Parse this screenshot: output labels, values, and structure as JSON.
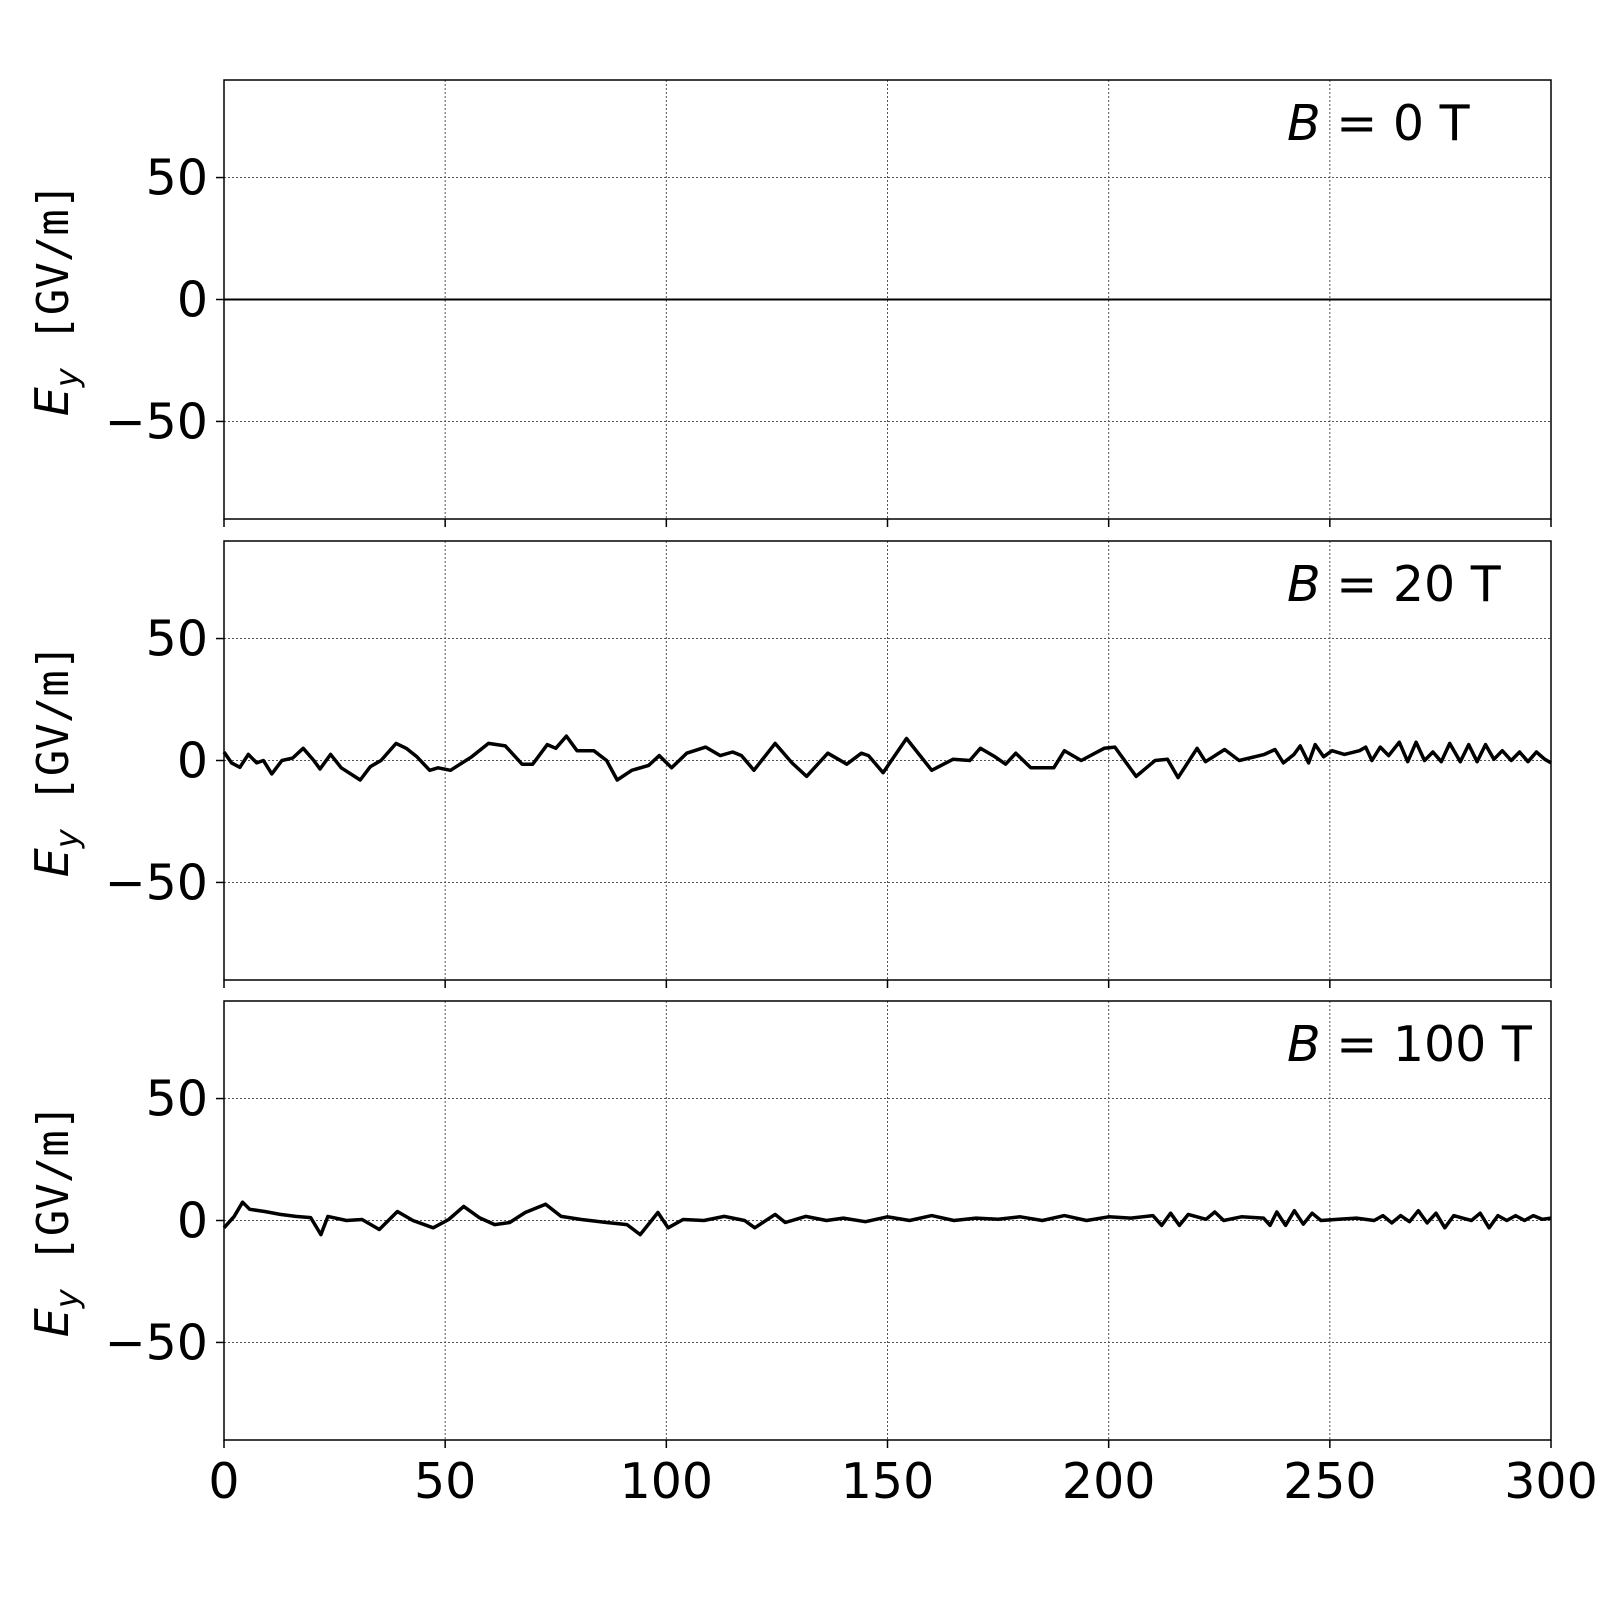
{
  "chart_data": [
    {
      "type": "line",
      "annotation": {
        "var": "B",
        "eq": " = 0 T"
      },
      "ylabel": {
        "var": "E",
        "sub": "y",
        "unit": " [GV/m]"
      },
      "xlim": [
        0,
        300
      ],
      "ylim": [
        -90,
        90
      ],
      "xticks": [
        0,
        50,
        100,
        150,
        200,
        250,
        300
      ],
      "yticks": [
        50,
        0,
        -50
      ],
      "xtick_labels_shown": false,
      "grid": true,
      "series": [
        {
          "color": "#000000",
          "points": [
            [
              0,
              0
            ],
            [
              300,
              0
            ]
          ]
        }
      ]
    },
    {
      "type": "line",
      "annotation": {
        "var": "B",
        "eq": " = 20 T"
      },
      "ylabel": {
        "var": "E",
        "sub": "y",
        "unit": " [GV/m]"
      },
      "xlim": [
        0,
        300
      ],
      "ylim": [
        -90,
        90
      ],
      "xticks": [
        0,
        50,
        100,
        150,
        200,
        250,
        300
      ],
      "yticks": [
        50,
        0,
        -50
      ],
      "xtick_labels_shown": false,
      "grid": true,
      "series": [
        {
          "color": "#000000",
          "points": [
            [
              0,
              3.5
            ],
            [
              1.7,
              -1
            ],
            [
              3.6,
              -2.8
            ],
            [
              5.5,
              2.5
            ],
            [
              7.4,
              -1
            ],
            [
              8.9,
              0
            ],
            [
              10.8,
              -5.5
            ],
            [
              13.1,
              0
            ],
            [
              15.5,
              1
            ],
            [
              17.9,
              5
            ],
            [
              20.3,
              0
            ],
            [
              21.7,
              -3.5
            ],
            [
              24.1,
              2.5
            ],
            [
              26.5,
              -3
            ],
            [
              30.8,
              -8
            ],
            [
              33.1,
              -2.5
            ],
            [
              35.5,
              0
            ],
            [
              38.9,
              7
            ],
            [
              41.2,
              5
            ],
            [
              43.6,
              1.5
            ],
            [
              46.5,
              -4
            ],
            [
              48.4,
              -3
            ],
            [
              51.2,
              -4
            ],
            [
              56,
              1.5
            ],
            [
              59.8,
              7
            ],
            [
              63.6,
              6
            ],
            [
              67.4,
              -1.5
            ],
            [
              69.8,
              -1.5
            ],
            [
              73.1,
              6.5
            ],
            [
              75,
              5
            ],
            [
              77.4,
              10
            ],
            [
              79.8,
              4
            ],
            [
              83.6,
              4
            ],
            [
              86.5,
              0
            ],
            [
              88.9,
              -8
            ],
            [
              92.2,
              -4
            ],
            [
              96,
              -2
            ],
            [
              98.4,
              2
            ],
            [
              101.2,
              -3
            ],
            [
              104.6,
              3
            ],
            [
              108.9,
              5.5
            ],
            [
              112.2,
              2
            ],
            [
              115,
              3.5
            ],
            [
              117,
              2
            ],
            [
              119.8,
              -4
            ],
            [
              124.6,
              7
            ],
            [
              128.4,
              -1
            ],
            [
              131.7,
              -6.5
            ],
            [
              136.5,
              3
            ],
            [
              140.8,
              -1.5
            ],
            [
              144.1,
              3
            ],
            [
              145.7,
              2
            ],
            [
              149,
              -5
            ],
            [
              154.3,
              9
            ],
            [
              160,
              -4
            ],
            [
              164.8,
              0.5
            ],
            [
              168.6,
              0
            ],
            [
              171,
              5
            ],
            [
              174.3,
              1.5
            ],
            [
              176.7,
              -1.5
            ],
            [
              179,
              3
            ],
            [
              182.4,
              -3
            ],
            [
              187.6,
              -3
            ],
            [
              190,
              4
            ],
            [
              193.8,
              0
            ],
            [
              199,
              5
            ],
            [
              201.4,
              5.5
            ],
            [
              206.2,
              -6.5
            ],
            [
              210.5,
              0
            ],
            [
              213.3,
              0.5
            ],
            [
              215.7,
              -7
            ],
            [
              220,
              5
            ],
            [
              221.9,
              -0.5
            ],
            [
              226.2,
              4.5
            ],
            [
              229.5,
              0
            ],
            [
              235.2,
              2.5
            ],
            [
              237.6,
              4.5
            ],
            [
              239.5,
              -1
            ],
            [
              241.9,
              2.5
            ],
            [
              243.3,
              6
            ],
            [
              245.2,
              -1
            ],
            [
              246.7,
              6.5
            ],
            [
              248.6,
              1.5
            ],
            [
              250.5,
              4
            ],
            [
              253.3,
              2.5
            ],
            [
              256.7,
              4
            ],
            [
              258.1,
              5.5
            ],
            [
              259.5,
              0
            ],
            [
              261.4,
              5.5
            ],
            [
              263.3,
              2
            ],
            [
              265.7,
              7.5
            ],
            [
              267.6,
              -0.5
            ],
            [
              269.5,
              7.5
            ],
            [
              271.4,
              0
            ],
            [
              273.3,
              3.5
            ],
            [
              275.2,
              -0.5
            ],
            [
              277.1,
              7
            ],
            [
              279.5,
              -0.5
            ],
            [
              281.4,
              6.5
            ],
            [
              283.3,
              -0.5
            ],
            [
              285.2,
              6.5
            ],
            [
              287.1,
              0.5
            ],
            [
              289,
              4
            ],
            [
              291,
              0
            ],
            [
              292.9,
              3.5
            ],
            [
              294.8,
              -0.5
            ],
            [
              296.7,
              3.5
            ],
            [
              298.6,
              0.5
            ],
            [
              300,
              -1
            ]
          ]
        }
      ]
    },
    {
      "type": "line",
      "annotation": {
        "var": "B",
        "eq": " = 100 T"
      },
      "ylabel": {
        "var": "E",
        "sub": "y",
        "unit": " [GV/m]"
      },
      "xlim": [
        0,
        300
      ],
      "ylim": [
        -90,
        90
      ],
      "xticks": [
        0,
        50,
        100,
        150,
        200,
        250,
        300
      ],
      "yticks": [
        50,
        0,
        -50
      ],
      "xtick_labels_shown": true,
      "xtick_labels": [
        "0",
        "50",
        "100",
        "150",
        "200",
        "250",
        "300"
      ],
      "grid": true,
      "series": [
        {
          "color": "#000000",
          "points": [
            [
              0,
              -3
            ],
            [
              2.3,
              1.7
            ],
            [
              4.2,
              7.5
            ],
            [
              5.8,
              4.6
            ],
            [
              9.2,
              3.7
            ],
            [
              12.7,
              2.5
            ],
            [
              16.2,
              1.7
            ],
            [
              19.6,
              1.2
            ],
            [
              21.9,
              -5.8
            ],
            [
              23.5,
              1.7
            ],
            [
              27.7,
              0
            ],
            [
              31.2,
              0.4
            ],
            [
              35.1,
              -3.7
            ],
            [
              39.2,
              3.7
            ],
            [
              42.7,
              0
            ],
            [
              47.3,
              -3
            ],
            [
              50.8,
              0.4
            ],
            [
              54.2,
              5.8
            ],
            [
              57.7,
              1.2
            ],
            [
              61.2,
              -1.7
            ],
            [
              64.6,
              -0.8
            ],
            [
              68.1,
              3.3
            ],
            [
              72.7,
              6.7
            ],
            [
              76.2,
              1.7
            ],
            [
              80.8,
              0.4
            ],
            [
              86.5,
              -0.8
            ],
            [
              91.1,
              -1.7
            ],
            [
              94.1,
              -5.8
            ],
            [
              98.1,
              3.3
            ],
            [
              100.4,
              -3
            ],
            [
              103.8,
              0.4
            ],
            [
              108.5,
              0
            ],
            [
              113.1,
              1.7
            ],
            [
              117.7,
              0
            ],
            [
              120,
              -3
            ],
            [
              124.6,
              2.5
            ],
            [
              126.9,
              -0.8
            ],
            [
              131.5,
              1.7
            ],
            [
              136.2,
              0
            ],
            [
              140,
              1
            ],
            [
              145,
              -0.5
            ],
            [
              150,
              1.5
            ],
            [
              155,
              0
            ],
            [
              160,
              2
            ],
            [
              165,
              0
            ],
            [
              170,
              1
            ],
            [
              175,
              0.5
            ],
            [
              180,
              1.5
            ],
            [
              185,
              0
            ],
            [
              190,
              2
            ],
            [
              195,
              0
            ],
            [
              200,
              1.5
            ],
            [
              205,
              1
            ],
            [
              210,
              2
            ],
            [
              212,
              -2
            ],
            [
              214,
              3
            ],
            [
              216,
              -2
            ],
            [
              218,
              2.5
            ],
            [
              222,
              0.5
            ],
            [
              224,
              3.5
            ],
            [
              226,
              0
            ],
            [
              230,
              1.5
            ],
            [
              235,
              1
            ],
            [
              236.5,
              -2
            ],
            [
              238,
              3.5
            ],
            [
              240,
              -2
            ],
            [
              242,
              4
            ],
            [
              244,
              -1.5
            ],
            [
              246,
              3
            ],
            [
              248,
              0
            ],
            [
              252,
              0.5
            ],
            [
              256,
              1
            ],
            [
              260,
              0
            ],
            [
              262,
              2
            ],
            [
              264,
              -1
            ],
            [
              266,
              2
            ],
            [
              268,
              -0.5
            ],
            [
              270,
              4
            ],
            [
              272,
              -1
            ],
            [
              274,
              3
            ],
            [
              276,
              -3
            ],
            [
              278,
              2
            ],
            [
              280,
              1
            ],
            [
              282,
              0
            ],
            [
              284,
              3
            ],
            [
              286,
              -3
            ],
            [
              288,
              2
            ],
            [
              290,
              0
            ],
            [
              292,
              2
            ],
            [
              294,
              0
            ],
            [
              296,
              2
            ],
            [
              298,
              0.5
            ],
            [
              300,
              1
            ]
          ]
        }
      ]
    }
  ]
}
